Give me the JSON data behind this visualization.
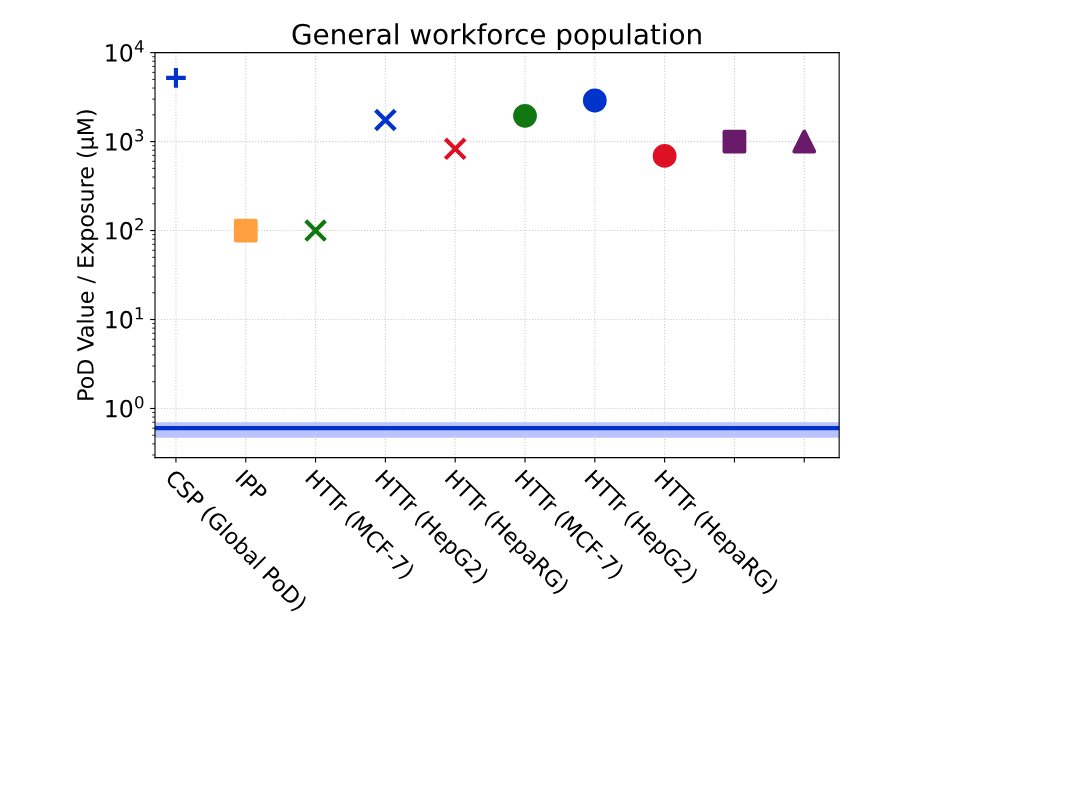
{
  "chart_data": {
    "type": "scatter",
    "title": "General workforce population",
    "ylabel": "PoD Value / Exposure (μM)",
    "categories": [
      "CSP (Global PoD)",
      "IPP",
      "HTTr (MCF-7)",
      "HTTr (HepG2)",
      "HTTr (HepaRG)",
      "HTTr (MCF-7)",
      "HTTr (HepG2)",
      "HTTr (HepaRG)",
      null,
      null
    ],
    "series": [
      {
        "color": "#0033cc",
        "marker": "plus",
        "values": [
          5200,
          null,
          null,
          null,
          null,
          null,
          null,
          null,
          null,
          null
        ]
      },
      {
        "color": "#ffa040",
        "marker": "square",
        "values": [
          null,
          100,
          null,
          null,
          null,
          null,
          null,
          null,
          null,
          null
        ]
      },
      {
        "color": "#117711",
        "marker": "cross",
        "values": [
          null,
          null,
          100,
          null,
          null,
          null,
          null,
          null,
          null,
          null
        ]
      },
      {
        "color": "#0033cc",
        "marker": "cross",
        "values": [
          null,
          null,
          null,
          1750,
          null,
          null,
          null,
          null,
          null,
          null
        ]
      },
      {
        "color": "#dd1122",
        "marker": "cross",
        "values": [
          null,
          null,
          null,
          null,
          830,
          null,
          null,
          null,
          null,
          null
        ]
      },
      {
        "color": "#117711",
        "marker": "circle",
        "values": [
          null,
          null,
          null,
          null,
          null,
          1950,
          null,
          null,
          null,
          null
        ]
      },
      {
        "color": "#0033cc",
        "marker": "circle",
        "values": [
          null,
          null,
          null,
          null,
          null,
          null,
          2900,
          null,
          null,
          null
        ]
      },
      {
        "color": "#dd1122",
        "marker": "circle",
        "values": [
          null,
          null,
          null,
          null,
          null,
          null,
          null,
          690,
          null,
          null
        ]
      },
      {
        "color": "#6a1a6a",
        "marker": "square",
        "values": [
          null,
          null,
          null,
          null,
          null,
          null,
          null,
          null,
          1000,
          null
        ]
      },
      {
        "color": "#6a1a6a",
        "marker": "triangle",
        "values": [
          null,
          null,
          null,
          null,
          null,
          null,
          null,
          null,
          null,
          1000
        ]
      }
    ],
    "log": "y",
    "ylim": [
      0.28,
      10000
    ],
    "yticks": [
      {
        "value": 1,
        "label": "10$^{0}$"
      },
      {
        "value": 10,
        "label": "10$^{1}$"
      },
      {
        "value": 100,
        "label": "10$^{2}$"
      },
      {
        "value": 1000,
        "label": "10$^{3}$"
      },
      {
        "value": 10000,
        "label": "10$^{4}$"
      }
    ],
    "ref_lines": [
      {
        "axis": "y",
        "value": 0.6,
        "color": "#0033cc",
        "line_style": "solid"
      }
    ],
    "bands": [
      {
        "axis": "y",
        "from": 0.47,
        "to": 0.7,
        "color": "#aab4ff"
      }
    ],
    "grid": true
  }
}
